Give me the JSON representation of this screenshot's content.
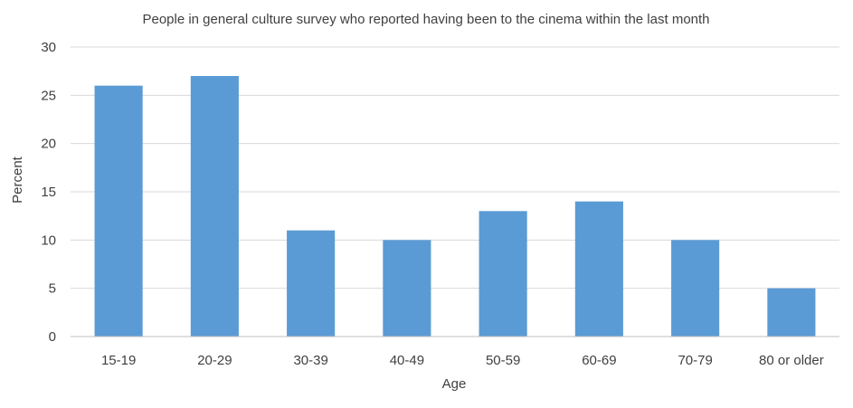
{
  "chart_data": {
    "type": "bar",
    "title": "People in general culture survey who reported having been to the cinema within the last month",
    "xlabel": "Age",
    "ylabel": "Percent",
    "categories": [
      "15-19",
      "20-29",
      "30-39",
      "40-49",
      "50-59",
      "60-69",
      "70-79",
      "80 or older"
    ],
    "values": [
      26,
      27,
      11,
      10,
      13,
      14,
      10,
      5
    ],
    "ylim": [
      0,
      30
    ],
    "yticks": [
      0,
      5,
      10,
      15,
      20,
      25,
      30
    ],
    "grid": true,
    "legend": "none",
    "colors": {
      "bar": "#5b9bd5",
      "grid": "#d9d9d9",
      "axis": "#bfbfbf",
      "text": "#404040"
    }
  }
}
